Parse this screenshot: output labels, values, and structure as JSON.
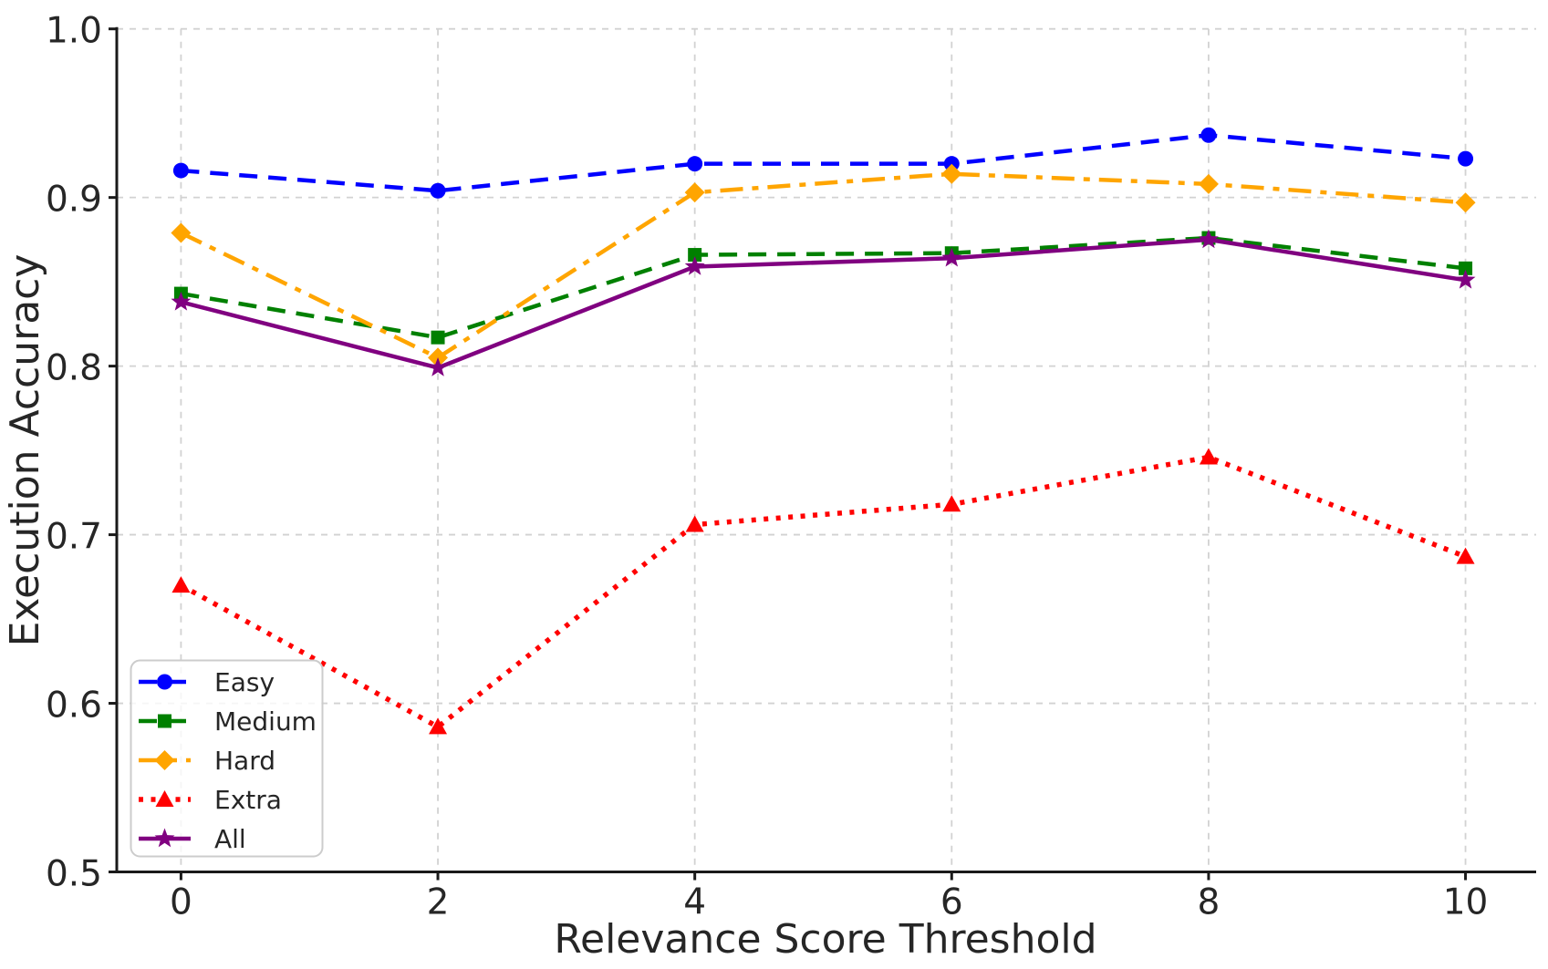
{
  "chart_data": {
    "type": "line",
    "title": "",
    "xlabel": "Relevance Score Threshold",
    "ylabel": "Execution Accuracy",
    "x": [
      0,
      2,
      4,
      6,
      8,
      10
    ],
    "xlim": [
      -0.5,
      10.55
    ],
    "ylim": [
      0.5,
      1.0
    ],
    "xticks": [
      0,
      2,
      4,
      6,
      8,
      10
    ],
    "xtick_labels": [
      "0",
      "2",
      "4",
      "6",
      "8",
      "10"
    ],
    "yticks": [
      0.5,
      0.6,
      0.7,
      0.8,
      0.9,
      1.0
    ],
    "ytick_labels": [
      "0.5",
      "0.6",
      "0.7",
      "0.8",
      "0.9",
      "1.0"
    ],
    "grid": true,
    "grid_color": "#d2d2d2",
    "spine_color": "#1a1a1a",
    "text_color": "#262626",
    "background_color": "#ffffff",
    "legend_position": "lower-left",
    "series": [
      {
        "name": "Easy",
        "color": "#0000ff",
        "linestyle": "dashed",
        "marker": "circle",
        "values": [
          0.916,
          0.904,
          0.92,
          0.92,
          0.937,
          0.923
        ]
      },
      {
        "name": "Medium",
        "color": "#008000",
        "linestyle": "dashed",
        "marker": "square",
        "values": [
          0.843,
          0.817,
          0.866,
          0.867,
          0.876,
          0.858
        ]
      },
      {
        "name": "Hard",
        "color": "#ffa500",
        "linestyle": "dashdot",
        "marker": "diamond",
        "values": [
          0.879,
          0.805,
          0.903,
          0.914,
          0.908,
          0.897
        ]
      },
      {
        "name": "Extra",
        "color": "#ff0000",
        "linestyle": "dotted",
        "marker": "triangle",
        "values": [
          0.67,
          0.586,
          0.706,
          0.718,
          0.746,
          0.687
        ]
      },
      {
        "name": "All",
        "color": "#800080",
        "linestyle": "solid",
        "marker": "star",
        "values": [
          0.838,
          0.799,
          0.859,
          0.864,
          0.875,
          0.851
        ]
      }
    ]
  }
}
